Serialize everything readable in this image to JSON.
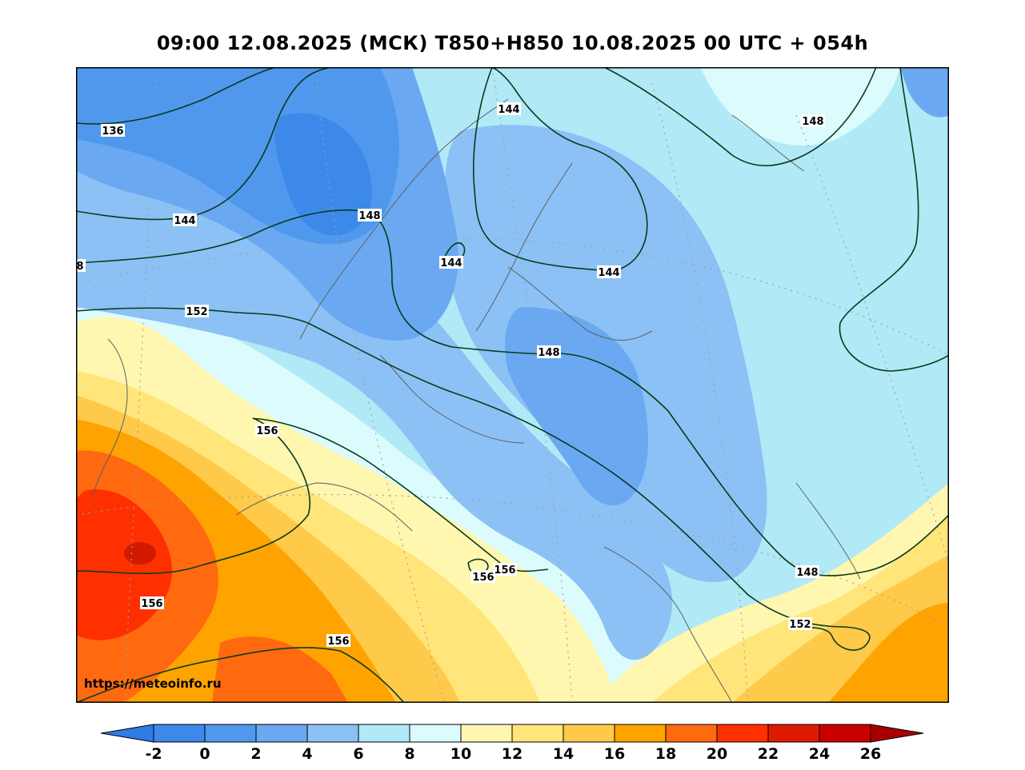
{
  "title": "09:00 12.08.2025 (МСК) T850+H850 10.08.2025 00 UTC + 054h",
  "watermark": "https://meteoinfo.ru",
  "colorbar": {
    "labels": [
      "-2",
      "0",
      "2",
      "4",
      "6",
      "8",
      "10",
      "12",
      "14",
      "16",
      "18",
      "20",
      "22",
      "24",
      "26"
    ],
    "colors": [
      "#2f7be8",
      "#3d89ea",
      "#4f98ee",
      "#6aa9f1",
      "#8cc1f5",
      "#b1e9f7",
      "#dcfbfd",
      "#fff7b0",
      "#ffe57a",
      "#ffc94a",
      "#ffa300",
      "#ff6a10",
      "#ff3000",
      "#e01a00",
      "#c80000",
      "#a80000"
    ]
  },
  "contour_labels": [
    {
      "text": "136"
    },
    {
      "text": "144"
    },
    {
      "text": "8"
    },
    {
      "text": "152"
    },
    {
      "text": "148"
    },
    {
      "text": "144"
    },
    {
      "text": "144"
    },
    {
      "text": "148"
    },
    {
      "text": "144"
    },
    {
      "text": "148"
    },
    {
      "text": "156"
    },
    {
      "text": "156"
    },
    {
      "text": "156"
    },
    {
      "text": "156"
    },
    {
      "text": "156"
    },
    {
      "text": "148"
    },
    {
      "text": "152"
    }
  ]
}
